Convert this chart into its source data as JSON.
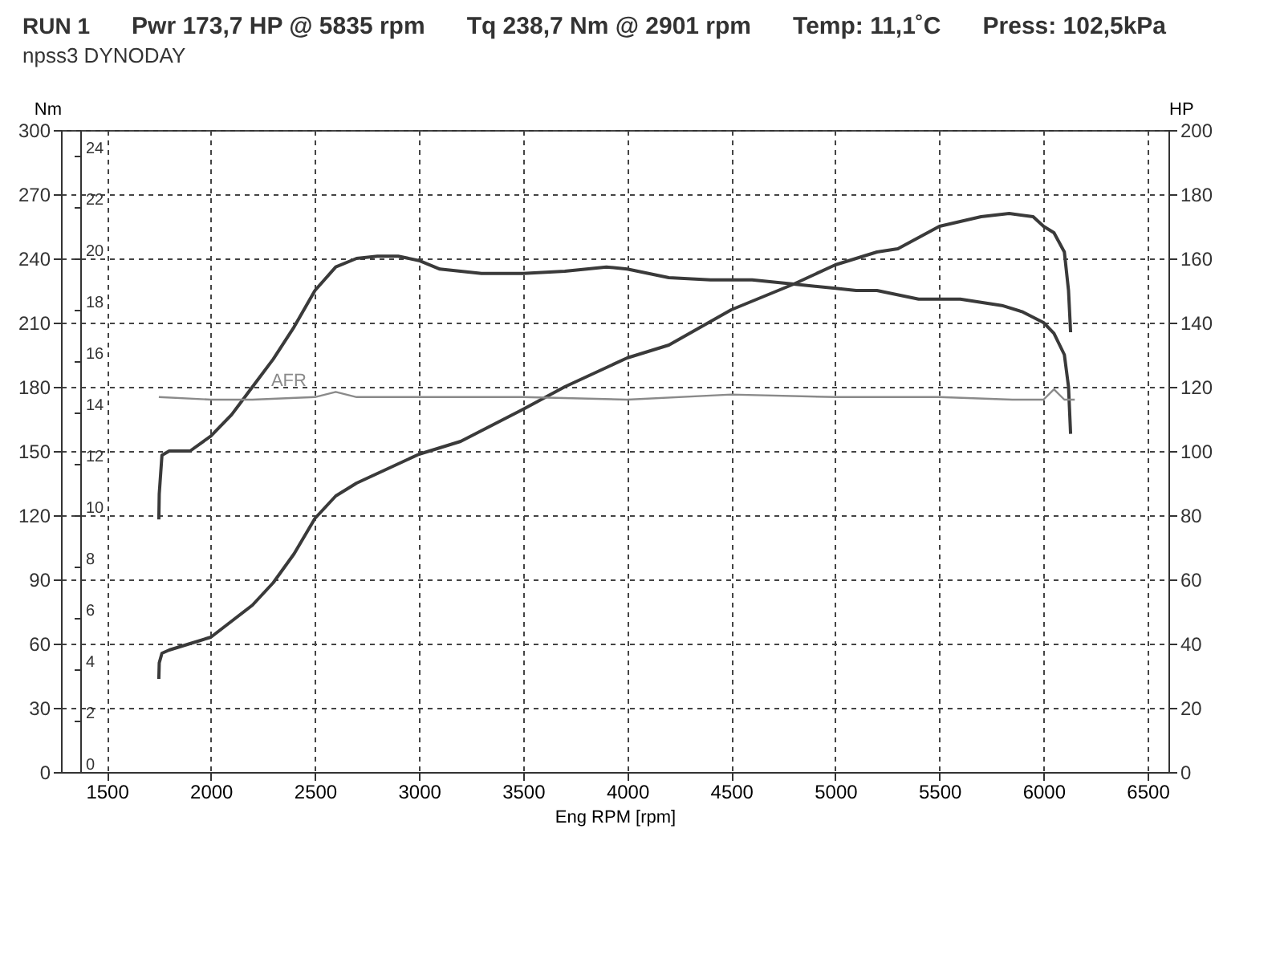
{
  "chart_data": {
    "type": "line",
    "title": "RUN 1",
    "subtitle": "npss3 DYNODAY",
    "xlabel": "Eng RPM [rpm]",
    "ylabel": "Nm",
    "y2label": "HP",
    "annotations": [
      "Pwr  173,7 HP @ 5835 rpm",
      "Tq 238,7 Nm @ 2901 rpm",
      "Temp: 11,1˚C",
      "Press: 102,5kPa"
    ],
    "xlim": [
      1280,
      6600
    ],
    "xticks": [
      1500,
      2000,
      2500,
      3000,
      3500,
      4000,
      4500,
      5000,
      5500,
      6000,
      6500
    ],
    "ylim": [
      0,
      300
    ],
    "yticks": [
      0,
      30,
      60,
      90,
      120,
      150,
      180,
      210,
      240,
      270,
      300
    ],
    "y2lim": [
      0,
      200
    ],
    "y2ticks": [
      0,
      20,
      40,
      60,
      80,
      100,
      120,
      140,
      160,
      180,
      200
    ],
    "y3lim": [
      0,
      25
    ],
    "y3ticks": [
      0,
      2,
      4,
      6,
      8,
      10,
      12,
      14,
      16,
      18,
      20,
      22,
      24
    ],
    "grid": true,
    "series": [
      {
        "color": "#3a3a3a",
        "axis": "y",
        "x": [
          1750,
          1752,
          1765,
          1800,
          1900,
          2000,
          2100,
          2200,
          2300,
          2400,
          2500,
          2600,
          2700,
          2800,
          2900,
          3000,
          3100,
          3200,
          3300,
          3500,
          3700,
          3900,
          4000,
          4200,
          4400,
          4600,
          4800,
          5000,
          5100,
          5200,
          5400,
          5500,
          5600,
          5800,
          5900,
          6000,
          6050,
          6100,
          6120,
          6130
        ],
        "values": [
          118,
          130,
          148,
          150,
          150,
          157,
          167,
          180,
          193,
          208,
          225,
          236,
          240,
          241,
          241,
          239,
          235,
          234,
          233,
          233,
          234,
          236,
          235,
          231,
          230,
          230,
          228,
          226,
          225,
          225,
          221,
          221,
          221,
          218,
          215,
          210,
          205,
          195,
          180,
          158
        ]
      },
      {
        "color": "#3a3a3a",
        "axis": "y2",
        "x": [
          1750,
          1752,
          1765,
          1800,
          1900,
          2000,
          2100,
          2200,
          2300,
          2400,
          2500,
          2600,
          2700,
          2800,
          3000,
          3200,
          3500,
          3700,
          4000,
          4200,
          4500,
          4800,
          5000,
          5200,
          5300,
          5500,
          5700,
          5835,
          5950,
          6000,
          6050,
          6100,
          6120,
          6130
        ],
        "values": [
          29,
          34,
          37,
          38,
          40,
          42,
          47,
          52,
          59,
          68,
          79,
          86,
          90,
          93,
          99,
          103,
          113,
          120,
          129,
          133,
          144,
          152,
          158,
          162,
          163,
          170,
          173,
          174,
          173,
          170,
          168,
          162,
          150,
          137
        ]
      },
      {
        "name": "AFR",
        "color": "#8a8a8a",
        "axis": "y3",
        "x": [
          1750,
          2000,
          2200,
          2500,
          2600,
          2700,
          3000,
          3500,
          4000,
          4500,
          5000,
          5500,
          5850,
          6000,
          6050,
          6100,
          6150
        ],
        "values": [
          14.6,
          14.5,
          14.5,
          14.6,
          14.8,
          14.6,
          14.6,
          14.6,
          14.5,
          14.7,
          14.6,
          14.6,
          14.5,
          14.5,
          14.9,
          14.5,
          14.5
        ]
      }
    ]
  }
}
